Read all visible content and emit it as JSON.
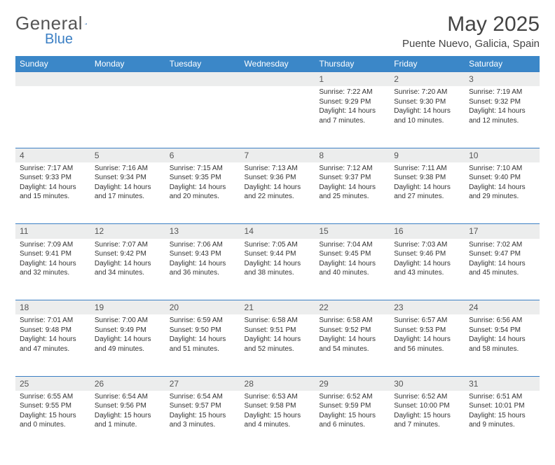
{
  "brand": {
    "general": "General",
    "blue": "Blue"
  },
  "title": "May 2025",
  "location": "Puente Nuevo, Galicia, Spain",
  "colors": {
    "header_bg": "#3b87c8",
    "header_text": "#ffffff",
    "daynum_bg": "#eceded",
    "rule": "#3b7fc4",
    "text": "#333333"
  },
  "weekdays": [
    "Sunday",
    "Monday",
    "Tuesday",
    "Wednesday",
    "Thursday",
    "Friday",
    "Saturday"
  ],
  "weeks": [
    [
      null,
      null,
      null,
      null,
      {
        "n": "1",
        "sr": "Sunrise: 7:22 AM",
        "ss": "Sunset: 9:29 PM",
        "dl": "Daylight: 14 hours and 7 minutes."
      },
      {
        "n": "2",
        "sr": "Sunrise: 7:20 AM",
        "ss": "Sunset: 9:30 PM",
        "dl": "Daylight: 14 hours and 10 minutes."
      },
      {
        "n": "3",
        "sr": "Sunrise: 7:19 AM",
        "ss": "Sunset: 9:32 PM",
        "dl": "Daylight: 14 hours and 12 minutes."
      }
    ],
    [
      {
        "n": "4",
        "sr": "Sunrise: 7:17 AM",
        "ss": "Sunset: 9:33 PM",
        "dl": "Daylight: 14 hours and 15 minutes."
      },
      {
        "n": "5",
        "sr": "Sunrise: 7:16 AM",
        "ss": "Sunset: 9:34 PM",
        "dl": "Daylight: 14 hours and 17 minutes."
      },
      {
        "n": "6",
        "sr": "Sunrise: 7:15 AM",
        "ss": "Sunset: 9:35 PM",
        "dl": "Daylight: 14 hours and 20 minutes."
      },
      {
        "n": "7",
        "sr": "Sunrise: 7:13 AM",
        "ss": "Sunset: 9:36 PM",
        "dl": "Daylight: 14 hours and 22 minutes."
      },
      {
        "n": "8",
        "sr": "Sunrise: 7:12 AM",
        "ss": "Sunset: 9:37 PM",
        "dl": "Daylight: 14 hours and 25 minutes."
      },
      {
        "n": "9",
        "sr": "Sunrise: 7:11 AM",
        "ss": "Sunset: 9:38 PM",
        "dl": "Daylight: 14 hours and 27 minutes."
      },
      {
        "n": "10",
        "sr": "Sunrise: 7:10 AM",
        "ss": "Sunset: 9:40 PM",
        "dl": "Daylight: 14 hours and 29 minutes."
      }
    ],
    [
      {
        "n": "11",
        "sr": "Sunrise: 7:09 AM",
        "ss": "Sunset: 9:41 PM",
        "dl": "Daylight: 14 hours and 32 minutes."
      },
      {
        "n": "12",
        "sr": "Sunrise: 7:07 AM",
        "ss": "Sunset: 9:42 PM",
        "dl": "Daylight: 14 hours and 34 minutes."
      },
      {
        "n": "13",
        "sr": "Sunrise: 7:06 AM",
        "ss": "Sunset: 9:43 PM",
        "dl": "Daylight: 14 hours and 36 minutes."
      },
      {
        "n": "14",
        "sr": "Sunrise: 7:05 AM",
        "ss": "Sunset: 9:44 PM",
        "dl": "Daylight: 14 hours and 38 minutes."
      },
      {
        "n": "15",
        "sr": "Sunrise: 7:04 AM",
        "ss": "Sunset: 9:45 PM",
        "dl": "Daylight: 14 hours and 40 minutes."
      },
      {
        "n": "16",
        "sr": "Sunrise: 7:03 AM",
        "ss": "Sunset: 9:46 PM",
        "dl": "Daylight: 14 hours and 43 minutes."
      },
      {
        "n": "17",
        "sr": "Sunrise: 7:02 AM",
        "ss": "Sunset: 9:47 PM",
        "dl": "Daylight: 14 hours and 45 minutes."
      }
    ],
    [
      {
        "n": "18",
        "sr": "Sunrise: 7:01 AM",
        "ss": "Sunset: 9:48 PM",
        "dl": "Daylight: 14 hours and 47 minutes."
      },
      {
        "n": "19",
        "sr": "Sunrise: 7:00 AM",
        "ss": "Sunset: 9:49 PM",
        "dl": "Daylight: 14 hours and 49 minutes."
      },
      {
        "n": "20",
        "sr": "Sunrise: 6:59 AM",
        "ss": "Sunset: 9:50 PM",
        "dl": "Daylight: 14 hours and 51 minutes."
      },
      {
        "n": "21",
        "sr": "Sunrise: 6:58 AM",
        "ss": "Sunset: 9:51 PM",
        "dl": "Daylight: 14 hours and 52 minutes."
      },
      {
        "n": "22",
        "sr": "Sunrise: 6:58 AM",
        "ss": "Sunset: 9:52 PM",
        "dl": "Daylight: 14 hours and 54 minutes."
      },
      {
        "n": "23",
        "sr": "Sunrise: 6:57 AM",
        "ss": "Sunset: 9:53 PM",
        "dl": "Daylight: 14 hours and 56 minutes."
      },
      {
        "n": "24",
        "sr": "Sunrise: 6:56 AM",
        "ss": "Sunset: 9:54 PM",
        "dl": "Daylight: 14 hours and 58 minutes."
      }
    ],
    [
      {
        "n": "25",
        "sr": "Sunrise: 6:55 AM",
        "ss": "Sunset: 9:55 PM",
        "dl": "Daylight: 15 hours and 0 minutes."
      },
      {
        "n": "26",
        "sr": "Sunrise: 6:54 AM",
        "ss": "Sunset: 9:56 PM",
        "dl": "Daylight: 15 hours and 1 minute."
      },
      {
        "n": "27",
        "sr": "Sunrise: 6:54 AM",
        "ss": "Sunset: 9:57 PM",
        "dl": "Daylight: 15 hours and 3 minutes."
      },
      {
        "n": "28",
        "sr": "Sunrise: 6:53 AM",
        "ss": "Sunset: 9:58 PM",
        "dl": "Daylight: 15 hours and 4 minutes."
      },
      {
        "n": "29",
        "sr": "Sunrise: 6:52 AM",
        "ss": "Sunset: 9:59 PM",
        "dl": "Daylight: 15 hours and 6 minutes."
      },
      {
        "n": "30",
        "sr": "Sunrise: 6:52 AM",
        "ss": "Sunset: 10:00 PM",
        "dl": "Daylight: 15 hours and 7 minutes."
      },
      {
        "n": "31",
        "sr": "Sunrise: 6:51 AM",
        "ss": "Sunset: 10:01 PM",
        "dl": "Daylight: 15 hours and 9 minutes."
      }
    ]
  ]
}
